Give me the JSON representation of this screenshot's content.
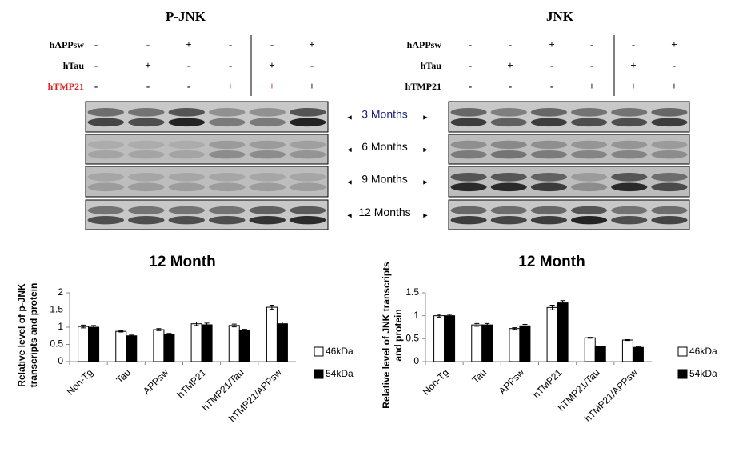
{
  "blots": [
    {
      "title": "P-JNK",
      "rows": [
        {
          "label": "hAPPsw",
          "color": "#000000",
          "signs": [
            "-",
            "-",
            "+",
            "-",
            "-",
            "+"
          ],
          "sign_colors": [
            "#000000",
            "#000000",
            "#000000",
            "#000000",
            "#000000",
            "#000000"
          ]
        },
        {
          "label": "hTau",
          "color": "#000000",
          "signs": [
            "-",
            "+",
            "-",
            "-",
            "+",
            "-"
          ],
          "sign_colors": [
            "#000000",
            "#000000",
            "#000000",
            "#000000",
            "#000000",
            "#000000"
          ]
        },
        {
          "label": "hTMP21",
          "color": "#e02020",
          "signs": [
            "-",
            "-",
            "-",
            "+",
            "+",
            "+"
          ],
          "sign_colors": [
            "#000000",
            "#000000",
            "#000000",
            "#e02020",
            "#e02020",
            "#000000"
          ]
        }
      ]
    },
    {
      "title": "JNK",
      "rows": [
        {
          "label": "hAPPsw",
          "color": "#000000",
          "signs": [
            "-",
            "-",
            "+",
            "-",
            "-",
            "+"
          ],
          "sign_colors": [
            "#000000",
            "#000000",
            "#000000",
            "#000000",
            "#000000",
            "#000000"
          ]
        },
        {
          "label": "hTau",
          "color": "#000000",
          "signs": [
            "-",
            "+",
            "-",
            "-",
            "+",
            "-"
          ],
          "sign_colors": [
            "#000000",
            "#000000",
            "#000000",
            "#000000",
            "#000000",
            "#000000"
          ]
        },
        {
          "label": "hTMP21",
          "color": "#000000",
          "signs": [
            "-",
            "-",
            "-",
            "+",
            "+",
            "+"
          ],
          "sign_colors": [
            "#000000",
            "#000000",
            "#000000",
            "#000000",
            "#000000",
            "#000000"
          ]
        }
      ]
    }
  ],
  "months": [
    {
      "label": "3 Months",
      "color": "#1a237e"
    },
    {
      "label": "6 Months",
      "color": "#000000"
    },
    {
      "label": "9 Months",
      "color": "#000000"
    },
    {
      "label": "12 Months",
      "color": "#000000"
    }
  ],
  "chart_data": [
    {
      "type": "bar",
      "title": "12 Month",
      "ylabel": [
        "Relative level of p-JNK",
        "transcripts and protein"
      ],
      "categories": [
        "Non-Tg",
        "Tau",
        "APPsw",
        "hTMP21",
        "hTMP21/Tau",
        "hTMP21/APPsw"
      ],
      "series": [
        {
          "name": "46kDa",
          "color": "#ffffff",
          "values": [
            1.02,
            0.88,
            0.93,
            1.1,
            1.05,
            1.58
          ],
          "errors": [
            0.04,
            0.02,
            0.03,
            0.05,
            0.04,
            0.06
          ]
        },
        {
          "name": "54kDa",
          "color": "#000000",
          "values": [
            1.0,
            0.75,
            0.8,
            1.07,
            0.92,
            1.1
          ],
          "errors": [
            0.05,
            0.02,
            0.02,
            0.05,
            0.02,
            0.05
          ]
        }
      ],
      "ylim": [
        0,
        2
      ],
      "yticks": [
        0,
        0.5,
        1,
        1.5,
        2
      ],
      "grid": false,
      "legend": "right"
    },
    {
      "type": "bar",
      "title": "12 Month",
      "ylabel": [
        "Relative level of JNK transcripts",
        "and protein"
      ],
      "categories": [
        "Non-Tg",
        "Tau",
        "APPsw",
        "hTMP21",
        "hTMP21/Tau",
        "hTMP21/APPsw"
      ],
      "series": [
        {
          "name": "46kDa",
          "color": "#ffffff",
          "values": [
            1.0,
            0.8,
            0.72,
            1.18,
            0.52,
            0.47
          ],
          "errors": [
            0.03,
            0.03,
            0.02,
            0.05,
            0.01,
            0.01
          ]
        },
        {
          "name": "54kDa",
          "color": "#000000",
          "values": [
            1.0,
            0.8,
            0.78,
            1.28,
            0.33,
            0.31
          ],
          "errors": [
            0.03,
            0.03,
            0.03,
            0.05,
            0.01,
            0.01
          ]
        }
      ],
      "ylim": [
        0,
        1.5
      ],
      "yticks": [
        0,
        0.5,
        1,
        1.5
      ],
      "grid": false,
      "legend": "right"
    }
  ]
}
